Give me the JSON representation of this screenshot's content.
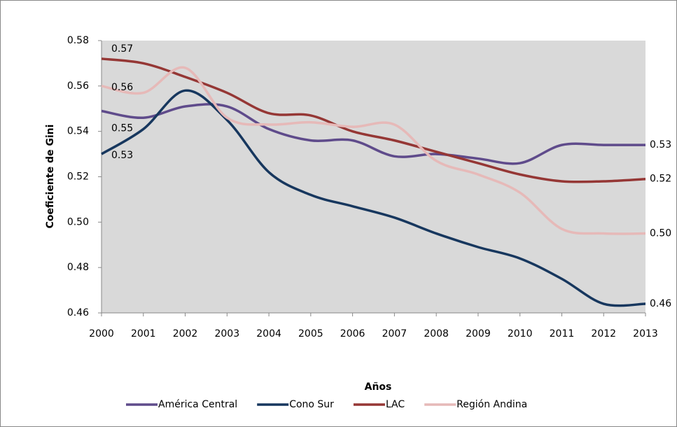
{
  "chart_data": {
    "type": "line",
    "x_label": "Años",
    "y_label": "Coeficiente de Gini",
    "x": [
      2000,
      2001,
      2002,
      2003,
      2004,
      2005,
      2006,
      2007,
      2008,
      2009,
      2010,
      2011,
      2012,
      2013
    ],
    "xlim": [
      2000,
      2013
    ],
    "xticks": [
      2000,
      2001,
      2002,
      2003,
      2004,
      2005,
      2006,
      2007,
      2008,
      2009,
      2010,
      2011,
      2012,
      2013
    ],
    "ylim": [
      0.46,
      0.58
    ],
    "yticks": [
      0.46,
      0.48,
      {
        "value": 0.5,
        "label": "0.50"
      },
      0.52,
      0.54,
      0.56,
      0.58
    ],
    "legend": "bottom",
    "series": [
      {
        "name": "América Central",
        "color": "#5f4b8b",
        "values": [
          0.549,
          0.546,
          0.551,
          0.551,
          0.541,
          0.536,
          0.536,
          0.529,
          0.53,
          0.528,
          0.526,
          0.534,
          0.534,
          0.534
        ],
        "value_labels": [
          "0.55",
          null,
          null,
          null,
          null,
          null,
          null,
          null,
          null,
          null,
          null,
          null,
          null,
          "0.53"
        ]
      },
      {
        "name": "Cono Sur",
        "color": "#17375e",
        "values": [
          0.53,
          0.541,
          0.558,
          0.545,
          0.522,
          0.512,
          0.507,
          0.502,
          0.495,
          0.489,
          0.484,
          0.475,
          0.464,
          0.464
        ],
        "value_labels": [
          "0.53",
          null,
          null,
          null,
          null,
          null,
          null,
          null,
          null,
          null,
          null,
          null,
          null,
          "0.46"
        ]
      },
      {
        "name": "LAC",
        "color": "#953735",
        "values": [
          0.572,
          0.57,
          0.564,
          0.557,
          0.548,
          0.547,
          0.54,
          0.536,
          0.531,
          0.526,
          0.521,
          0.518,
          0.518,
          0.519
        ],
        "value_labels": [
          "0.57",
          null,
          null,
          null,
          null,
          null,
          null,
          null,
          null,
          null,
          null,
          null,
          null,
          "0.52"
        ]
      },
      {
        "name": "Región Andina",
        "color": "#e6b9b8",
        "values": [
          0.56,
          0.557,
          0.568,
          0.546,
          0.543,
          0.544,
          0.542,
          0.543,
          0.527,
          0.521,
          0.513,
          0.497,
          0.495,
          0.495
        ],
        "value_labels": [
          "0.56",
          null,
          null,
          null,
          null,
          null,
          null,
          null,
          null,
          null,
          null,
          null,
          null,
          "0.50"
        ]
      }
    ]
  }
}
